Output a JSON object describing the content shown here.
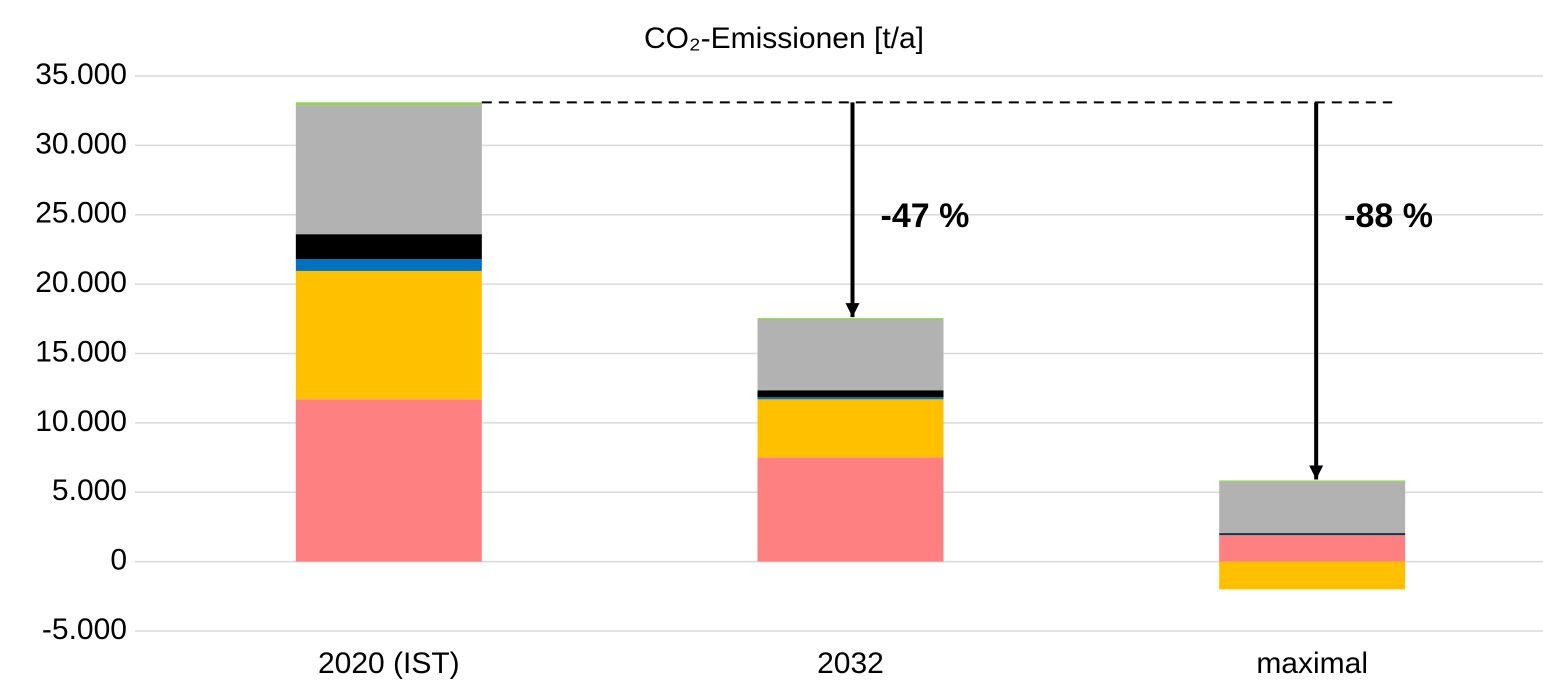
{
  "chart_data": {
    "type": "stacked_bar",
    "title": "CO₂-Emissionen [t/a]",
    "categories": [
      "2020 (IST)",
      "2032",
      "maximal"
    ],
    "series": [
      {
        "color": "#ff8080",
        "values": [
          11700,
          7500,
          1900
        ]
      },
      {
        "color": "#ffc000",
        "values": [
          9250,
          4200,
          -2000
        ]
      },
      {
        "color": "#0070c0",
        "values": [
          850,
          150,
          50
        ]
      },
      {
        "color": "#000000",
        "values": [
          1800,
          500,
          100
        ]
      },
      {
        "color": "#b2b2b2",
        "values": [
          9300,
          5100,
          3700
        ]
      },
      {
        "color": "#92d050",
        "values": [
          200,
          100,
          100
        ]
      }
    ],
    "ylim": [
      -5000,
      35000
    ],
    "yticks": [
      {
        "value": -5000,
        "label": "-5.000"
      },
      0,
      {
        "value": 5000,
        "label": "5.000"
      },
      {
        "value": 10000,
        "label": "10.000"
      },
      {
        "value": 15000,
        "label": "15.000"
      },
      {
        "value": 20000,
        "label": "20.000"
      },
      {
        "value": 25000,
        "label": "25.000"
      },
      {
        "value": 30000,
        "label": "30.000"
      },
      {
        "value": 35000,
        "label": "35.000"
      }
    ],
    "grid": true,
    "annotations": [
      "-47 %",
      "-88 %"
    ]
  }
}
